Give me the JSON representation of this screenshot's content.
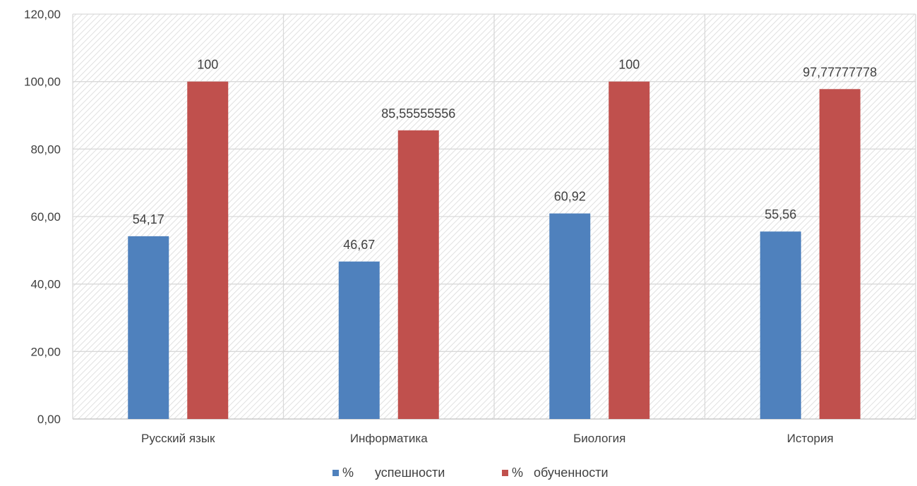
{
  "chart_data": {
    "type": "bar",
    "categories": [
      "Русский язык",
      "Информатика",
      "Биология",
      "История"
    ],
    "series": [
      {
        "name": "%      успешности",
        "values": [
          54.17,
          46.67,
          60.92,
          55.56
        ],
        "labels": [
          "54,17",
          "46,67",
          "60,92",
          "55,56"
        ],
        "color": "#4f81bd"
      },
      {
        "name": "%   обученности",
        "values": [
          100,
          85.55555556,
          100,
          97.77777778
        ],
        "labels": [
          "100",
          "85,55555556",
          "100",
          "97,77777778"
        ],
        "color": "#c0504d"
      }
    ],
    "ylim": [
      0,
      120
    ],
    "yticks": [
      0,
      20,
      40,
      60,
      80,
      100,
      120
    ],
    "ytick_labels": [
      "0,00",
      "20,00",
      "40,00",
      "60,00",
      "80,00",
      "100,00",
      "120,00"
    ],
    "grid": true,
    "plot_background": "diagonal-hatch",
    "legend_position": "bottom"
  }
}
